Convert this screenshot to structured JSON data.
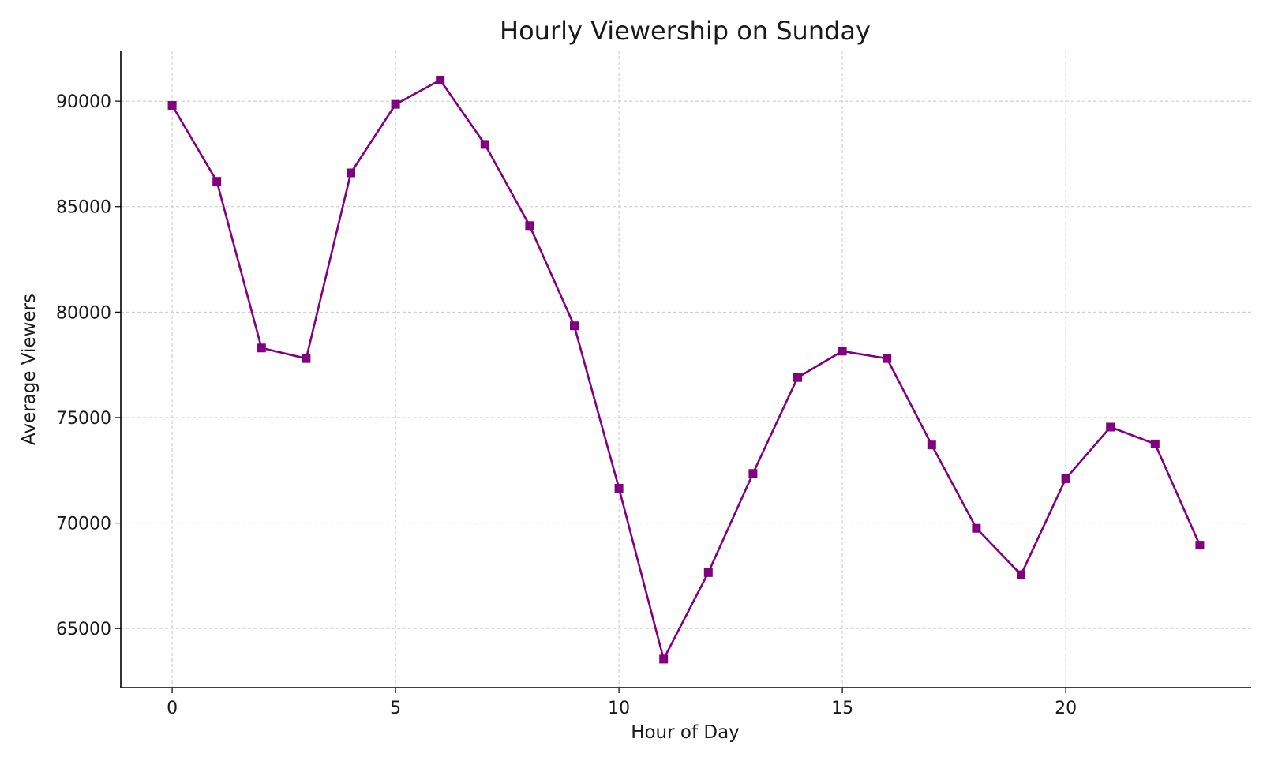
{
  "chart_data": {
    "type": "line",
    "title": "Hourly Viewership on Sunday",
    "xlabel": "Hour of Day",
    "ylabel": "Average Viewers",
    "xlim": [
      -1.15,
      24.15
    ],
    "ylim": [
      62200,
      92400
    ],
    "x_ticks": [
      0,
      5,
      10,
      15,
      20
    ],
    "y_ticks": [
      65000,
      70000,
      75000,
      80000,
      85000,
      90000
    ],
    "grid": true,
    "line_color": "#800080",
    "marker": "square",
    "series": [
      {
        "x": [
          0,
          1,
          2,
          3,
          4,
          5,
          6,
          7,
          8,
          9,
          10,
          11,
          12,
          13,
          14,
          15,
          16,
          17,
          18,
          19,
          20,
          21,
          22,
          23
        ],
        "values": [
          89800,
          86200,
          78300,
          77800,
          86600,
          89850,
          91000,
          87950,
          84100,
          79350,
          71650,
          63550,
          67650,
          72350,
          76900,
          78150,
          77800,
          73700,
          69750,
          67550,
          72100,
          74550,
          73750,
          68950
        ]
      }
    ]
  }
}
